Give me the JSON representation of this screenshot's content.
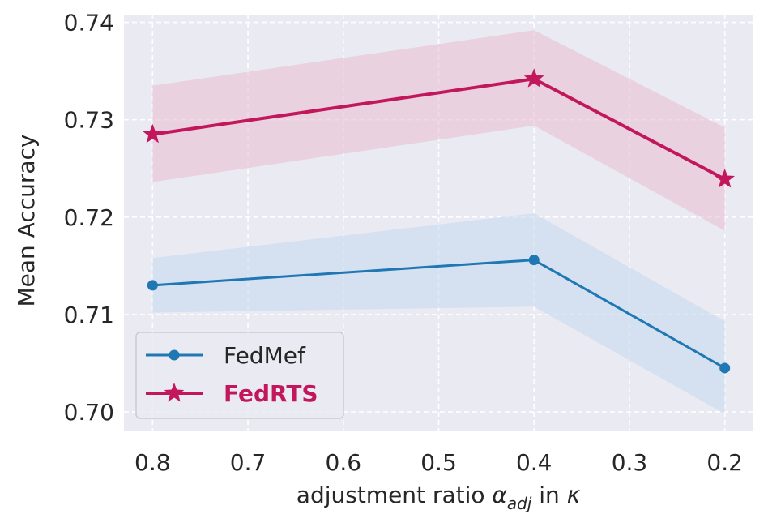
{
  "chart_data": {
    "type": "line",
    "title": "",
    "xlabel": {
      "prefix": "adjustment ratio ",
      "symbol": "α",
      "subscript": "adj",
      "suffix": " in ",
      "symbol2": "κ"
    },
    "ylabel": "Mean Accuracy",
    "x": [
      0.8,
      0.4,
      0.2
    ],
    "x_ticks": [
      "0.8",
      "0.7",
      "0.6",
      "0.5",
      "0.4",
      "0.3",
      "0.2"
    ],
    "x_tick_values": [
      0.8,
      0.7,
      0.6,
      0.5,
      0.4,
      0.3,
      0.2
    ],
    "xlim": [
      0.83,
      0.17
    ],
    "y_ticks": [
      "0.70",
      "0.71",
      "0.72",
      "0.73",
      "0.74"
    ],
    "y_tick_values": [
      0.7,
      0.71,
      0.72,
      0.73,
      0.74
    ],
    "ylim": [
      0.698,
      0.7408
    ],
    "grid": true,
    "legend_position": "lower-left",
    "series": [
      {
        "name": "FedMef",
        "color": "#1f77b4",
        "band_color": "#c6dbef",
        "marker": "circle",
        "bold": false,
        "values": [
          0.713,
          0.7156,
          0.7045
        ],
        "lower": [
          0.7102,
          0.7108,
          0.6998
        ],
        "upper": [
          0.7158,
          0.7204,
          0.7093
        ]
      },
      {
        "name": "FedRTS",
        "color": "#c2185b",
        "band_color": "#e8bfd4",
        "marker": "star",
        "bold": true,
        "values": [
          0.7285,
          0.7342,
          0.7239
        ],
        "lower": [
          0.7236,
          0.7294,
          0.7186
        ],
        "upper": [
          0.7335,
          0.7392,
          0.7292
        ]
      }
    ]
  }
}
